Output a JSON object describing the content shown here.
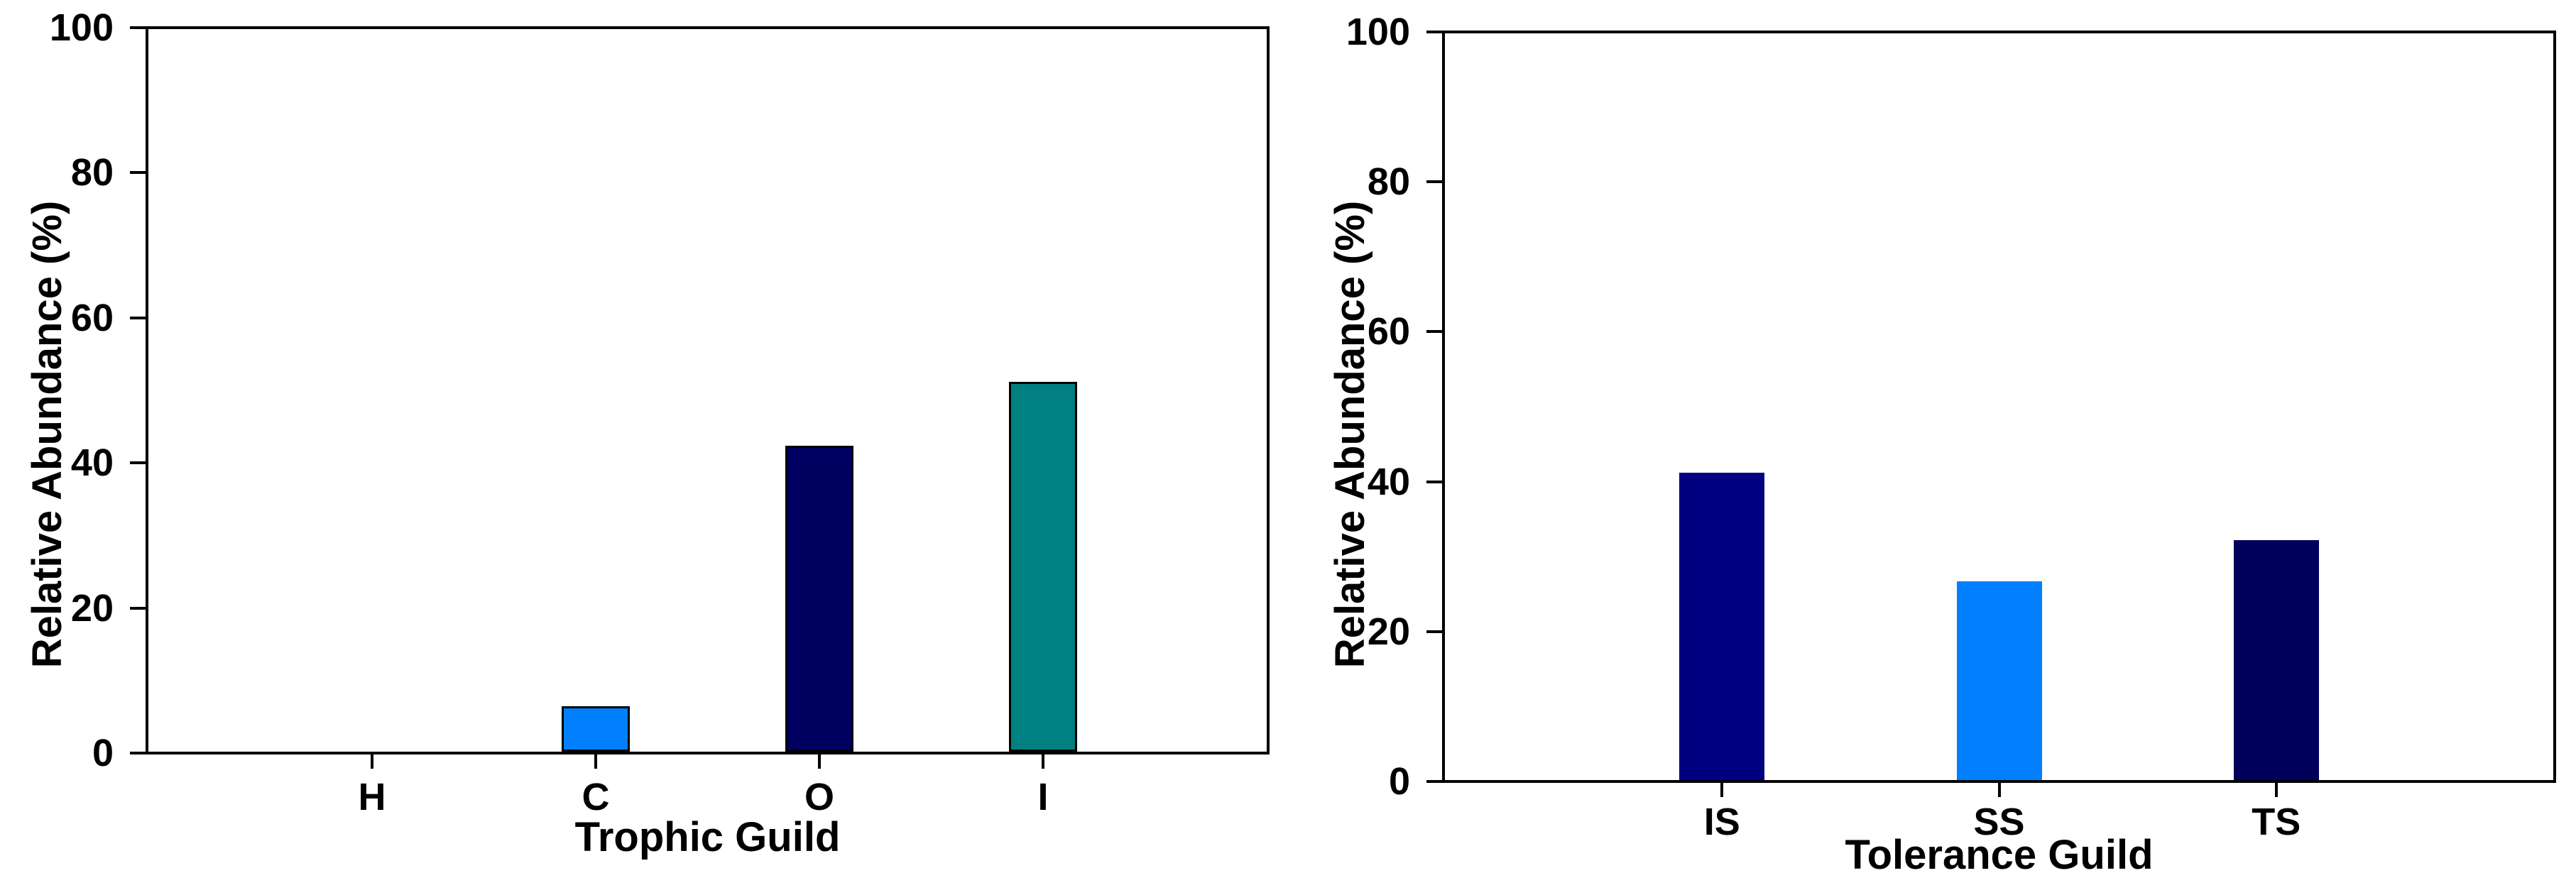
{
  "figure": {
    "background_color": "#ffffff",
    "text_color": "#000000",
    "axis_color": "#000000"
  },
  "chart_data": [
    {
      "type": "bar",
      "title": "",
      "xlabel": "Trophic Guild",
      "ylabel": "Relative Abundance (%)",
      "categories": [
        "H",
        "C",
        "O",
        "I"
      ],
      "values": [
        0,
        6.3,
        42.3,
        51.2
      ],
      "bar_colors": [
        null,
        "#0080ff",
        "#000060",
        "#008080"
      ],
      "bar_border_color": "#000000",
      "ylim": [
        0,
        100
      ],
      "yticks": [
        0,
        20,
        40,
        60,
        80,
        100
      ],
      "grid": false,
      "legend": null,
      "frame": "full-box"
    },
    {
      "type": "bar",
      "title": "",
      "xlabel": "Tolerance Guild",
      "ylabel": "Relative Abundance (%)",
      "categories": [
        "IS",
        "SS",
        "TS"
      ],
      "values": [
        41.2,
        26.6,
        32.1
      ],
      "bar_colors": [
        "#000080",
        "#0080ff",
        "#00005a"
      ],
      "bar_border_color": null,
      "ylim": [
        0,
        100
      ],
      "yticks": [
        0,
        20,
        40,
        60,
        80,
        100
      ],
      "grid": false,
      "legend": null,
      "frame": "full-box"
    }
  ]
}
